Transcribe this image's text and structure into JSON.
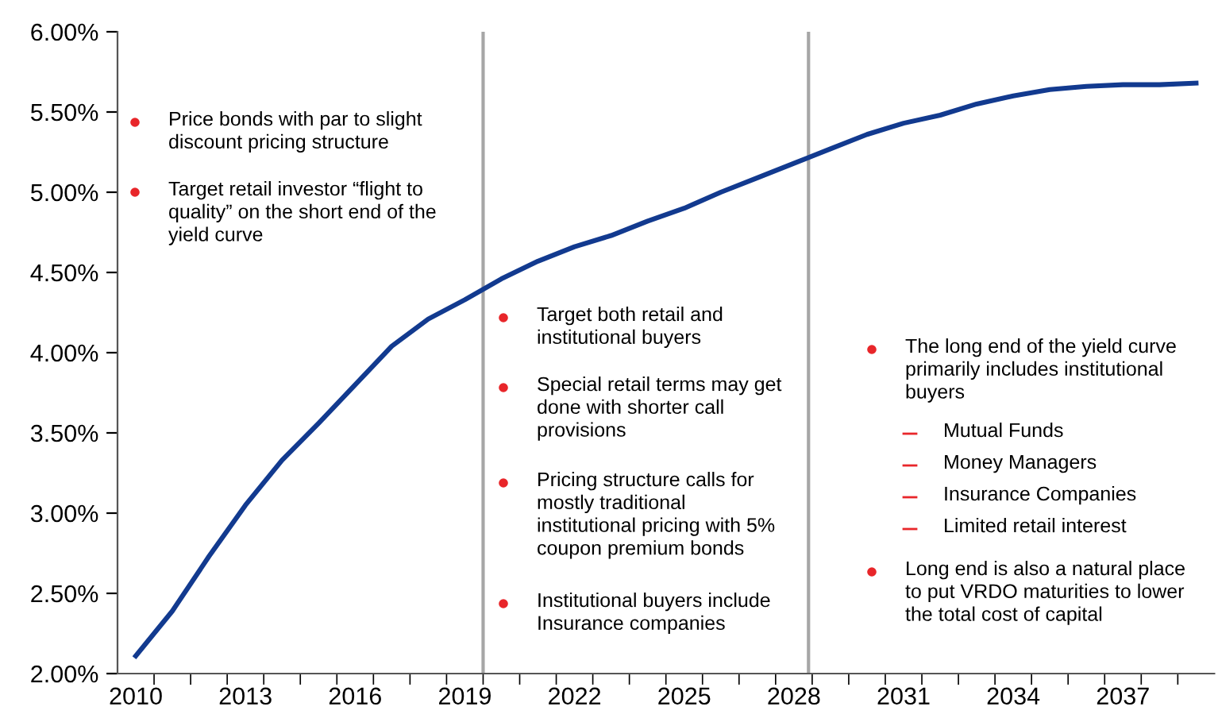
{
  "chart_data": {
    "type": "line",
    "x": [
      2010,
      2011,
      2012,
      2013,
      2014,
      2015,
      2016,
      2017,
      2018,
      2019,
      2020,
      2021,
      2022,
      2023,
      2024,
      2025,
      2026,
      2027,
      2028,
      2029,
      2030,
      2031,
      2032,
      2033,
      2034,
      2035,
      2036,
      2037,
      2038,
      2039
    ],
    "series": [
      {
        "color": "#123a8f",
        "values": [
          2.11,
          2.39,
          2.73,
          3.05,
          3.33,
          3.56,
          3.8,
          4.04,
          4.21,
          4.33,
          4.46,
          4.57,
          4.66,
          4.73,
          4.82,
          4.9,
          5.0,
          5.09,
          5.18,
          5.27,
          5.36,
          5.43,
          5.48,
          5.55,
          5.6,
          5.64,
          5.66,
          5.67,
          5.67,
          5.68
        ]
      }
    ],
    "xlim": [
      2009.5,
      2039.5
    ],
    "xticks": [
      {
        "value": 2010,
        "label": "2010"
      },
      {
        "value": 2013,
        "label": "2013"
      },
      {
        "value": 2016,
        "label": "2016"
      },
      {
        "value": 2019,
        "label": "2019"
      },
      {
        "value": 2022,
        "label": "2022"
      },
      {
        "value": 2025,
        "label": "2025"
      },
      {
        "value": 2028,
        "label": "2028"
      },
      {
        "value": 2031,
        "label": "2031"
      },
      {
        "value": 2034,
        "label": "2034"
      },
      {
        "value": 2037,
        "label": "2037"
      },
      {
        "value": 2010.5,
        "label": null
      },
      {
        "value": 2011.5,
        "label": null
      },
      {
        "value": 2012.5,
        "label": null
      },
      {
        "value": 2013.5,
        "label": null
      },
      {
        "value": 2014.5,
        "label": null
      },
      {
        "value": 2015.5,
        "label": null
      },
      {
        "value": 2016.5,
        "label": null
      },
      {
        "value": 2017.5,
        "label": null
      },
      {
        "value": 2018.5,
        "label": null
      },
      {
        "value": 2019.5,
        "label": null
      },
      {
        "value": 2020.5,
        "label": null
      },
      {
        "value": 2021.5,
        "label": null
      },
      {
        "value": 2022.5,
        "label": null
      },
      {
        "value": 2023.5,
        "label": null
      },
      {
        "value": 2024.5,
        "label": null
      },
      {
        "value": 2025.5,
        "label": null
      },
      {
        "value": 2026.5,
        "label": null
      },
      {
        "value": 2027.5,
        "label": null
      },
      {
        "value": 2028.5,
        "label": null
      },
      {
        "value": 2029.5,
        "label": null
      },
      {
        "value": 2030.5,
        "label": null
      },
      {
        "value": 2031.5,
        "label": null
      },
      {
        "value": 2032.5,
        "label": null
      },
      {
        "value": 2033.5,
        "label": null
      },
      {
        "value": 2034.5,
        "label": null
      },
      {
        "value": 2035.5,
        "label": null
      },
      {
        "value": 2036.5,
        "label": null
      },
      {
        "value": 2037.5,
        "label": null
      },
      {
        "value": 2038.5,
        "label": null
      }
    ],
    "ylim": [
      2,
      6
    ],
    "yticks": [
      {
        "value": 2,
        "label": "2.00%"
      },
      {
        "value": 2.5,
        "label": "2.50%"
      },
      {
        "value": 3,
        "label": "3.00%"
      },
      {
        "value": 3.5,
        "label": "3.50%"
      },
      {
        "value": 4,
        "label": "4.00%"
      },
      {
        "value": 4.5,
        "label": "4.50%"
      },
      {
        "value": 5,
        "label": "5.00%"
      },
      {
        "value": 5.5,
        "label": "5.50%"
      },
      {
        "value": 6,
        "label": "6.00%"
      }
    ],
    "ref_lines": [
      {
        "axis": "x",
        "value": 2019.5,
        "color": "#a6a6a6"
      },
      {
        "axis": "x",
        "value": 2028.4,
        "color": "#a6a6a6"
      }
    ],
    "grid": false,
    "legend": false,
    "marker": "none",
    "line_style": "solid",
    "annotations": [
      "Price bonds with par to slight\ndiscount pricing structure",
      "Target retail investor “flight to\nquality” on the short end of the\nyield curve",
      "Target both retail and\ninstitutional buyers",
      "Special retail terms may get\ndone with shorter call\nprovisions",
      "Pricing structure calls for\nmostly traditional\ninstitutional pricing with 5%\ncoupon premium bonds",
      "Institutional buyers include\nInsurance companies",
      "The long end of the yield curve\nprimarily includes institutional\nbuyers",
      "Mutual Funds",
      "Money Managers",
      "Insurance Companies",
      "Limited retail interest",
      "Long end is also a natural place\nto put VRDO maturities to lower\nthe total cost of capital"
    ]
  }
}
